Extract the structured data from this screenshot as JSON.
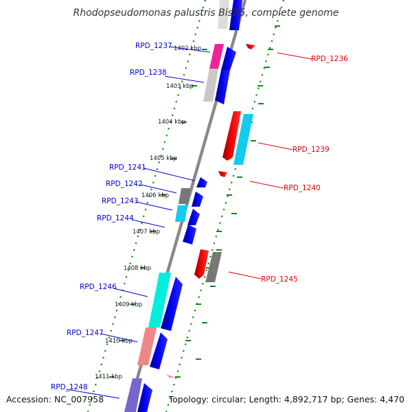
{
  "title": "Rhodopseudomonas palustris BisB5, complete genome",
  "accession": "Accession: NC_007958",
  "topology": "Topology: circular; Length: 4,892,717 bp; Genes: 4,470",
  "kbp_ticks": [
    {
      "kb": 1402,
      "label": "1402 kbp"
    },
    {
      "kb": 1403,
      "label": "1403 kbp"
    },
    {
      "kb": 1404,
      "label": "1404 kbp"
    },
    {
      "kb": 1405,
      "label": "1405 kbp"
    },
    {
      "kb": 1406,
      "label": "1406 kbp"
    },
    {
      "kb": 1407,
      "label": "1407 kbp"
    },
    {
      "kb": 1408,
      "label": "1408 kbp"
    },
    {
      "kb": 1409,
      "label": "1409 kbp"
    },
    {
      "kb": 1410,
      "label": "1410 kbp"
    },
    {
      "kb": 1411,
      "label": "1411 kbp"
    }
  ],
  "labels_forward": [
    "RPD_1237",
    "RPD_1238",
    "RPD_1241",
    "RPD_1242",
    "RPD_1243",
    "RPD_1244",
    "RPD_1246",
    "RPD_1247",
    "RPD_1248"
  ],
  "labels_reverse": [
    "RPD_1236",
    "RPD_1239",
    "RPD_1240",
    "RPD_1245"
  ],
  "colors": {
    "backbone": "#8a8a8a",
    "tick": "#118811",
    "forward_label": "#0000cc",
    "reverse_label": "#dd0000",
    "cds": "#0000ee",
    "cds_reverse": "#ee0000",
    "grey": "#777777",
    "light_grey": "#c8c8c8",
    "magenta": "#ee2299",
    "cyan": "#11ccee",
    "teal": "#00eedd",
    "salmon": "#ee8888",
    "purple": "#7766cc",
    "pink": "#ff99cc"
  }
}
